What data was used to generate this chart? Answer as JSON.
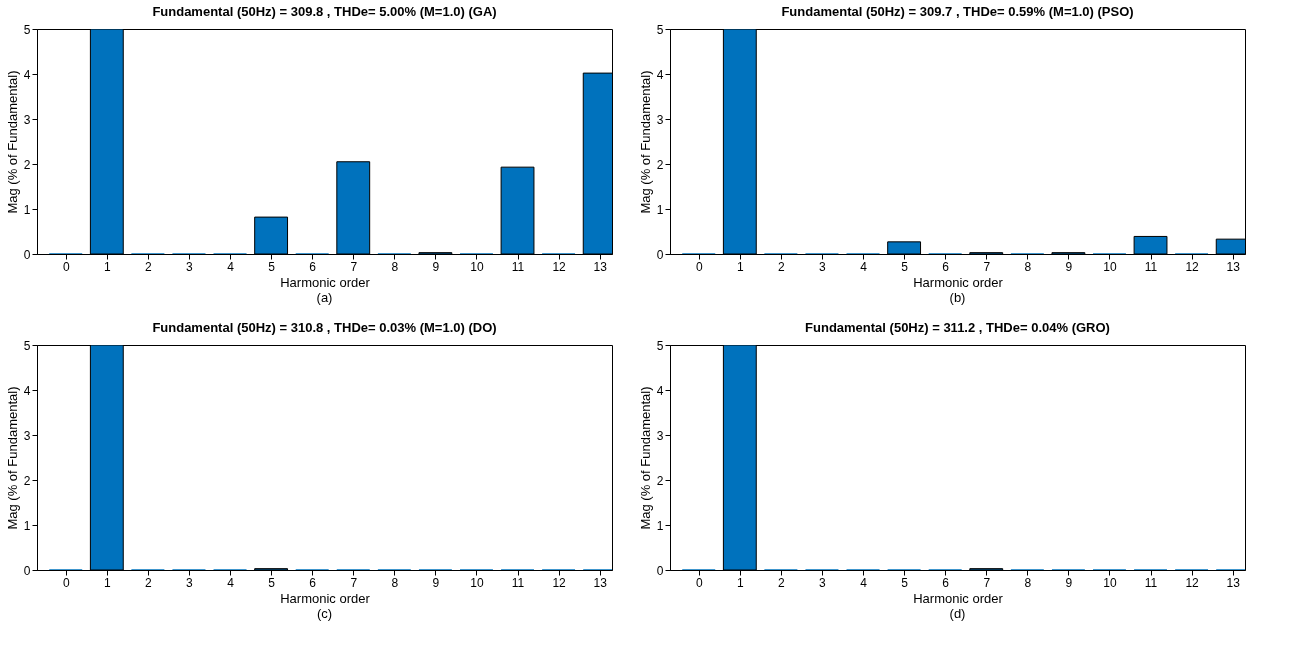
{
  "chart_data": [
    {
      "type": "bar",
      "title": "Fundamental (50Hz) = 309.8 , THDe= 5.00% (M=1.0) (GA)",
      "xlabel": "Harmonic order",
      "ylabel": "Mag (% of Fundamental)",
      "annotations": [
        "(a)"
      ],
      "x": [
        0,
        1,
        2,
        3,
        4,
        5,
        6,
        7,
        8,
        9,
        10,
        11,
        12,
        13
      ],
      "series": [
        {
          "color": "#0072bd",
          "values": [
            0,
            5,
            0,
            0,
            0,
            0.82,
            0,
            2.05,
            0,
            0.03,
            0,
            1.93,
            0,
            4.02
          ]
        }
      ],
      "xlim": [
        -0.7,
        13.3
      ],
      "xticks": [
        0,
        1,
        2,
        3,
        4,
        5,
        6,
        7,
        8,
        9,
        10,
        11,
        12,
        13
      ],
      "ylim": [
        0,
        5
      ],
      "yticks": [
        0,
        1,
        2,
        3,
        4,
        5
      ],
      "grid": false
    },
    {
      "type": "bar",
      "title": "Fundamental (50Hz) = 309.7 , THDe= 0.59% (M=1.0) (PSO)",
      "xlabel": "Harmonic order",
      "ylabel": "Mag (% of Fundamental)",
      "annotations": [
        "(b)"
      ],
      "x": [
        0,
        1,
        2,
        3,
        4,
        5,
        6,
        7,
        8,
        9,
        10,
        11,
        12,
        13
      ],
      "series": [
        {
          "color": "#0072bd",
          "values": [
            0,
            5,
            0,
            0,
            0,
            0.27,
            0,
            0.03,
            0,
            0.03,
            0,
            0.39,
            0,
            0.33
          ]
        }
      ],
      "xlim": [
        -0.7,
        13.3
      ],
      "xticks": [
        0,
        1,
        2,
        3,
        4,
        5,
        6,
        7,
        8,
        9,
        10,
        11,
        12,
        13
      ],
      "ylim": [
        0,
        5
      ],
      "yticks": [
        0,
        1,
        2,
        3,
        4,
        5
      ],
      "grid": false
    },
    {
      "type": "bar",
      "title": "Fundamental (50Hz) = 310.8 , THDe= 0.03%  (M=1.0) (DO)",
      "xlabel": "Harmonic order",
      "ylabel": "Mag (% of Fundamental)",
      "annotations": [
        "(c)"
      ],
      "x": [
        0,
        1,
        2,
        3,
        4,
        5,
        6,
        7,
        8,
        9,
        10,
        11,
        12,
        13
      ],
      "series": [
        {
          "color": "#0072bd",
          "values": [
            0,
            5,
            0,
            0,
            0,
            0.03,
            0,
            0,
            0,
            0,
            0,
            0,
            0,
            0
          ]
        }
      ],
      "xlim": [
        -0.7,
        13.3
      ],
      "xticks": [
        0,
        1,
        2,
        3,
        4,
        5,
        6,
        7,
        8,
        9,
        10,
        11,
        12,
        13
      ],
      "ylim": [
        0,
        5
      ],
      "yticks": [
        0,
        1,
        2,
        3,
        4,
        5
      ],
      "grid": false
    },
    {
      "type": "bar",
      "title": "Fundamental (50Hz) = 311.2 , THDe= 0.04% (GRO)",
      "xlabel": "Harmonic order",
      "ylabel": "Mag (% of Fundamental)",
      "annotations": [
        "(d)"
      ],
      "x": [
        0,
        1,
        2,
        3,
        4,
        5,
        6,
        7,
        8,
        9,
        10,
        11,
        12,
        13
      ],
      "series": [
        {
          "color": "#0072bd",
          "values": [
            0,
            5,
            0,
            0,
            0,
            0,
            0,
            0.03,
            0,
            0,
            0,
            0,
            0,
            0
          ]
        }
      ],
      "xlim": [
        -0.7,
        13.3
      ],
      "xticks": [
        0,
        1,
        2,
        3,
        4,
        5,
        6,
        7,
        8,
        9,
        10,
        11,
        12,
        13
      ],
      "ylim": [
        0,
        5
      ],
      "yticks": [
        0,
        1,
        2,
        3,
        4,
        5
      ],
      "grid": false
    }
  ]
}
